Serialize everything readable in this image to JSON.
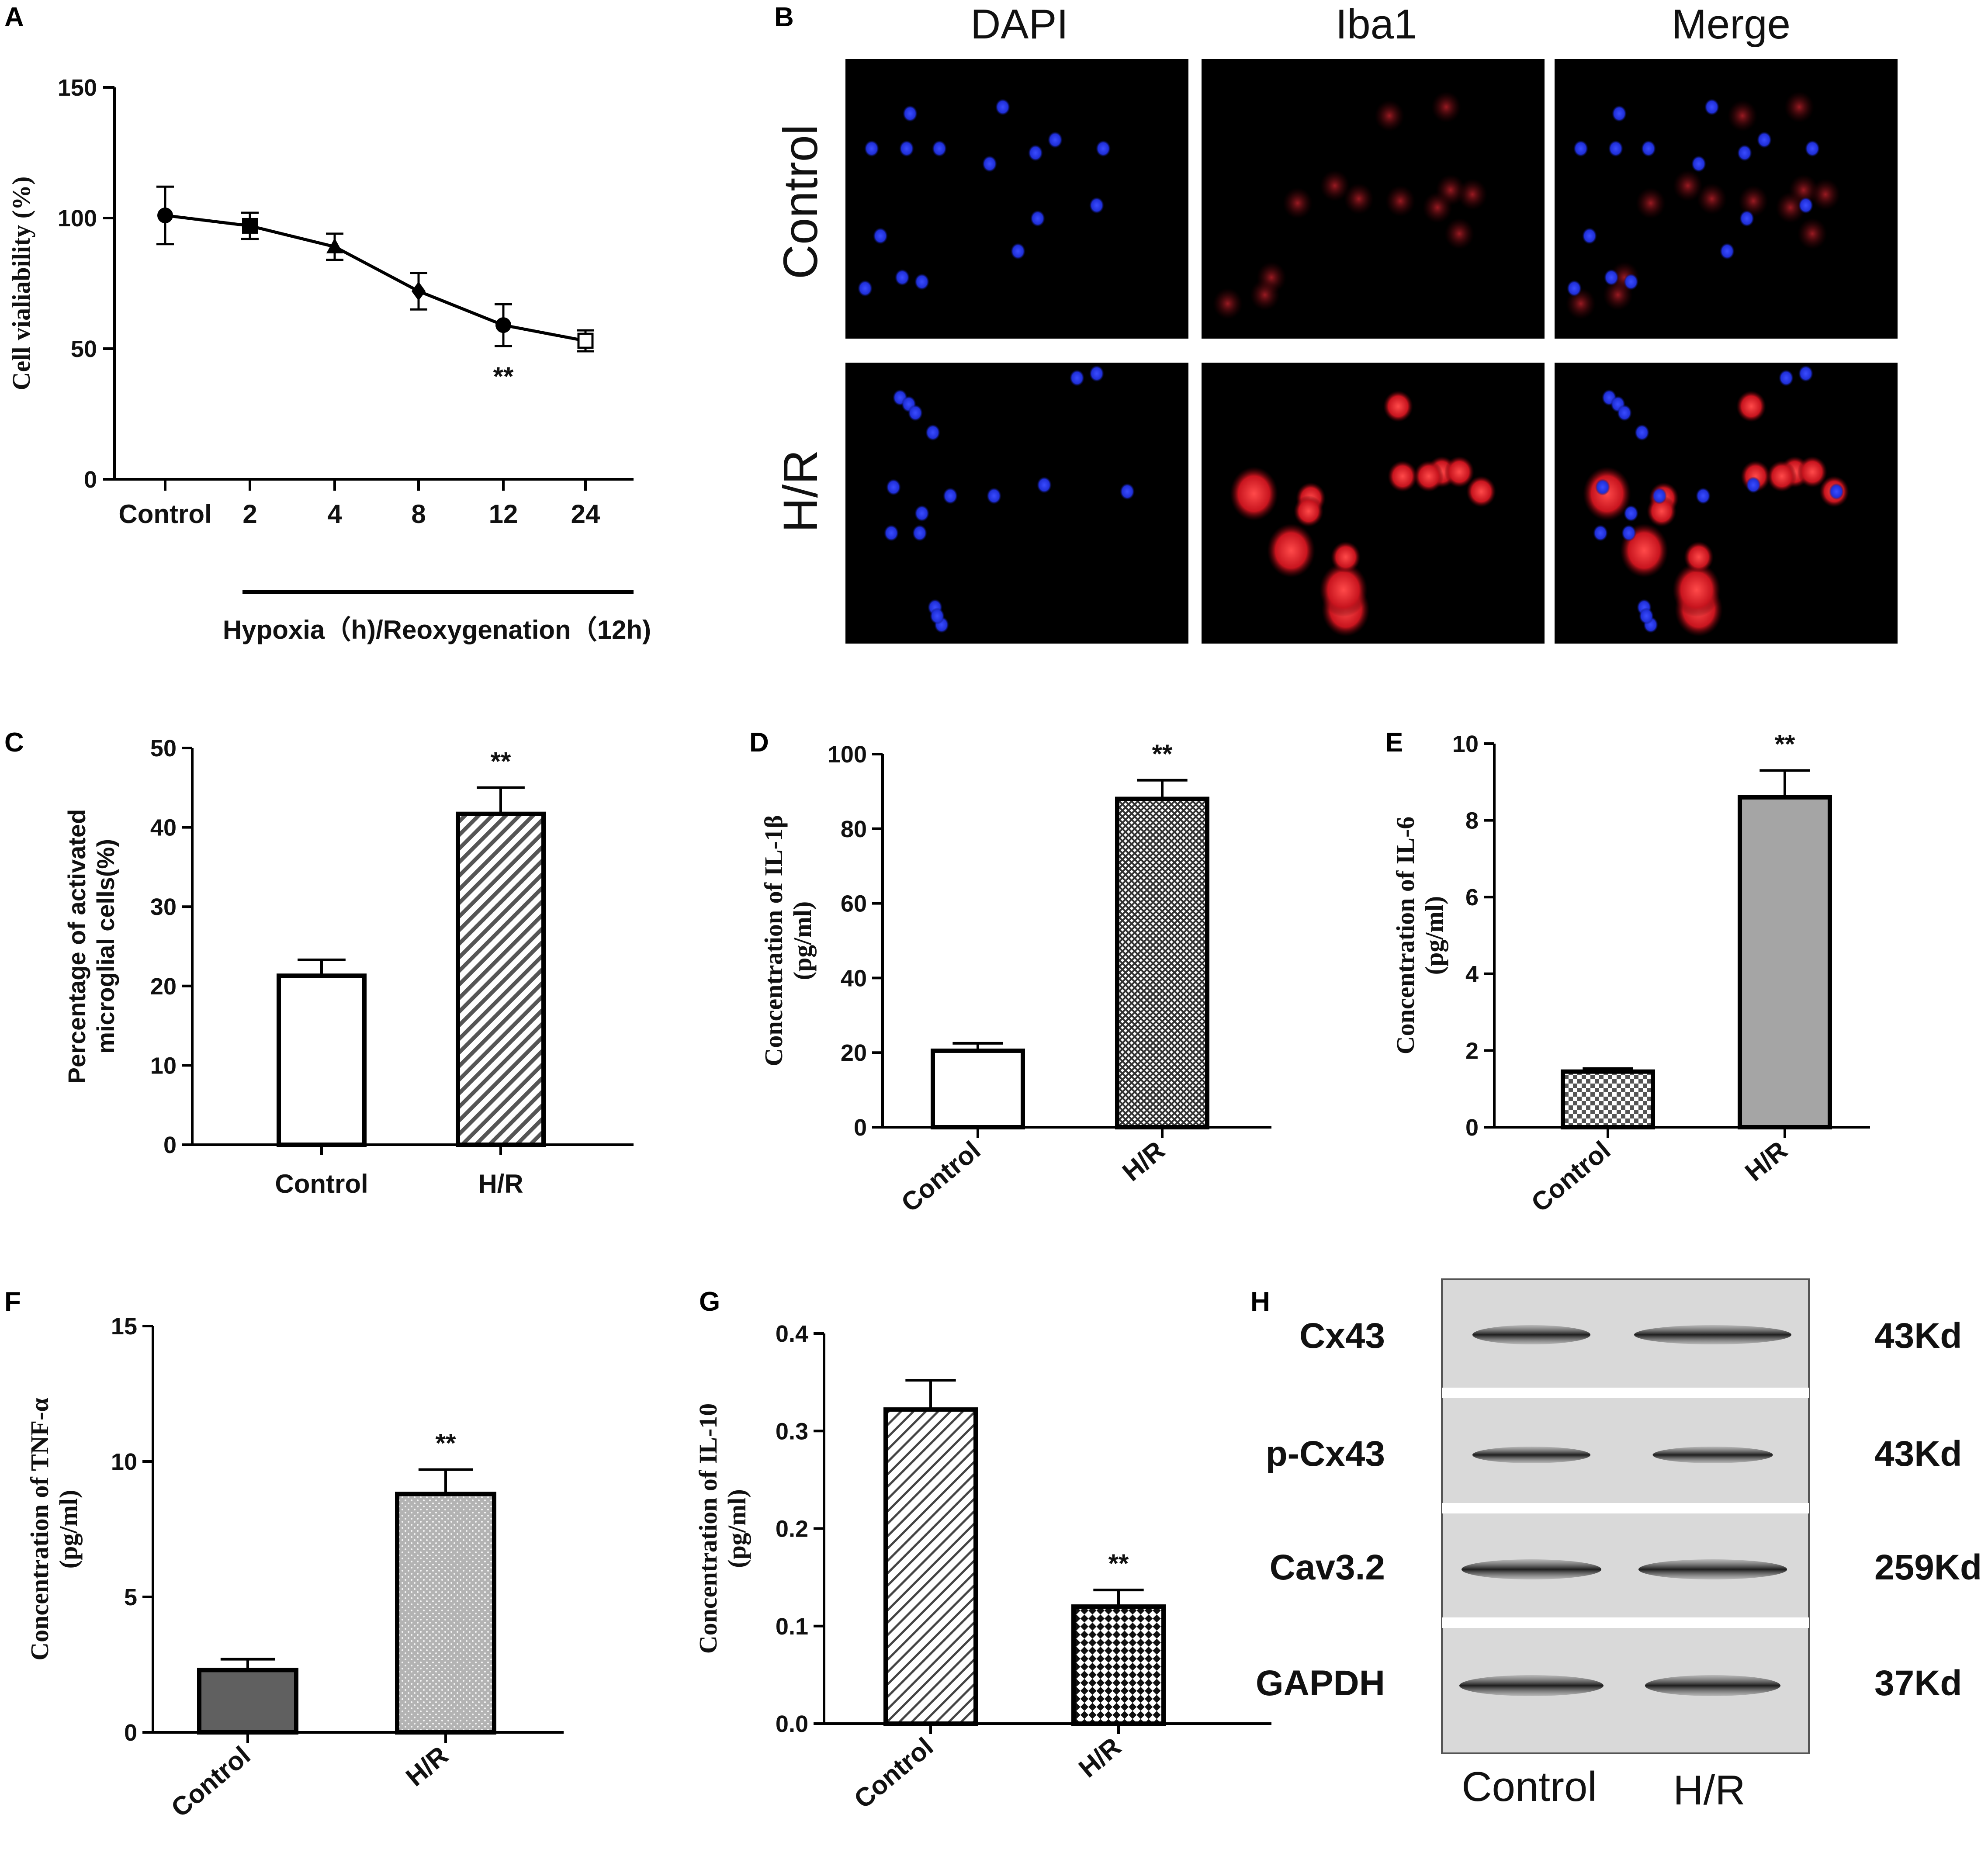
{
  "panels": {
    "A": "A",
    "B": "B",
    "C": "C",
    "D": "D",
    "E": "E",
    "F": "F",
    "G": "G",
    "H": "H"
  },
  "chart_data": [
    {
      "id": "A",
      "type": "line",
      "categories": [
        "Control",
        "2",
        "4",
        "8",
        "12",
        "24"
      ],
      "values": [
        101,
        97,
        89,
        72,
        59,
        53
      ],
      "errors": [
        11,
        5,
        5,
        7,
        8,
        4
      ],
      "markers": [
        "circle",
        "square",
        "triangle",
        "diamond",
        "circle",
        "open-square"
      ],
      "ylabel": "Cell vialiability (%)",
      "xlabel": "Hypoxia（h)/Reoxygenation（12h)",
      "yticks": [
        "0",
        "50",
        "100",
        "150"
      ],
      "ylim": [
        0,
        150
      ],
      "significance": [
        {
          "index": 4,
          "text": "**"
        }
      ]
    },
    {
      "id": "C",
      "type": "bar",
      "categories": [
        "Control",
        "H/R"
      ],
      "values": [
        21.3,
        41.7
      ],
      "errors": [
        2.0,
        3.3
      ],
      "fills": [
        "white",
        "diagonal"
      ],
      "ylabel": "Percentage of activated microglial cells(%)",
      "ylabel_lines": [
        "Percentage of activated",
        "microglial cells(%)"
      ],
      "yticks": [
        "0",
        "10",
        "20",
        "30",
        "40",
        "50"
      ],
      "ylim": [
        0,
        50
      ],
      "significance": [
        {
          "index": 1,
          "text": "**"
        }
      ]
    },
    {
      "id": "D",
      "type": "bar",
      "categories": [
        "Control",
        "H/R"
      ],
      "values": [
        20.5,
        88
      ],
      "errors": [
        2.0,
        5.0
      ],
      "fills": [
        "white",
        "cross"
      ],
      "ylabel": "Concentration of IL-1β (pg/ml)",
      "ylabel_lines": [
        "Concentration of IL-1β",
        "(pg/ml)"
      ],
      "yticks": [
        "0",
        "20",
        "40",
        "60",
        "80",
        "100"
      ],
      "ylim": [
        0,
        100
      ],
      "significance": [
        {
          "index": 1,
          "text": "**"
        }
      ]
    },
    {
      "id": "E",
      "type": "bar",
      "categories": [
        "Control",
        "H/R"
      ],
      "values": [
        1.45,
        8.6
      ],
      "errors": [
        0.08,
        0.7
      ],
      "fills": [
        "checker",
        "gray"
      ],
      "ylabel": "Concentration of IL-6 (pg/ml)",
      "ylabel_lines": [
        "Concentration of IL-6",
        "(pg/ml)"
      ],
      "yticks": [
        "0",
        "2",
        "4",
        "6",
        "8",
        "10"
      ],
      "ylim": [
        0,
        10
      ],
      "significance": [
        {
          "index": 1,
          "text": "**"
        }
      ]
    },
    {
      "id": "F",
      "type": "bar",
      "categories": [
        "Control",
        "H/R"
      ],
      "values": [
        2.3,
        8.8
      ],
      "errors": [
        0.4,
        0.9
      ],
      "fills": [
        "dark",
        "dots"
      ],
      "ylabel": "Concentration of TNF-α (pg/ml)",
      "ylabel_lines": [
        "Concentration of TNF-α",
        "(pg/ml)"
      ],
      "yticks": [
        "0",
        "5",
        "10",
        "15"
      ],
      "ylim": [
        0,
        15
      ],
      "significance": [
        {
          "index": 1,
          "text": "**"
        }
      ]
    },
    {
      "id": "G",
      "type": "bar",
      "categories": [
        "Control",
        "H/R"
      ],
      "values": [
        0.322,
        0.12
      ],
      "errors": [
        0.03,
        0.017
      ],
      "fills": [
        "diagonal-light",
        "checker-dark"
      ],
      "ylabel": "Concentration of IL-10 (pg/ml)",
      "ylabel_lines": [
        "Concentration of IL-10",
        "(pg/ml)"
      ],
      "yticks": [
        "0.0",
        "0.1",
        "0.2",
        "0.3",
        "0.4"
      ],
      "ylim": [
        0,
        0.4
      ],
      "significance": [
        {
          "index": 1,
          "text": "**"
        }
      ]
    }
  ],
  "microscopy": {
    "columns": [
      "DAPI",
      "Iba1",
      "Merge"
    ],
    "rows": [
      "Control",
      "H/R"
    ]
  },
  "western_blot": {
    "proteins": [
      {
        "name": "Cx43",
        "weight": "43Kd"
      },
      {
        "name": "p-Cx43",
        "weight": "43Kd"
      },
      {
        "name": "Cav3.2",
        "weight": "259Kd"
      },
      {
        "name": "GAPDH",
        "weight": "37Kd"
      }
    ],
    "lanes": [
      "Control",
      "H/R"
    ]
  },
  "colors": {
    "dapi": "#1f2fd8",
    "iba1": "#d8202a",
    "panel_bg": "#000000",
    "blot_bg": "#d9d9d9",
    "bar_gray": "#a5a5a5",
    "bar_dark": "#606060"
  }
}
